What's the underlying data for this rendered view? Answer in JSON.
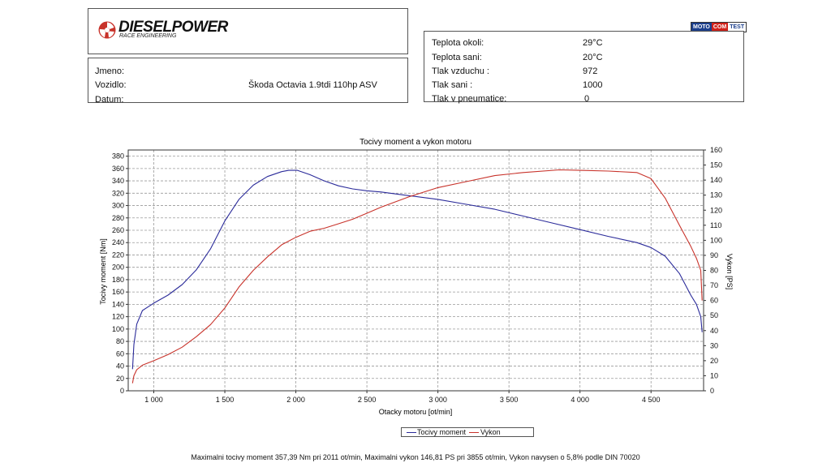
{
  "header": {
    "logo_text": "DIESELPOWER",
    "logo_sub": "RACE ENGINEERING",
    "badge": [
      "MOTO",
      "COM",
      "TEST"
    ]
  },
  "info": {
    "name_label": "Jmeno:",
    "vehicle_label": "Vozidlo:",
    "vehicle_value": "Škoda Octavia 1.9tdi 110hp ASV",
    "date_label": "Datum:"
  },
  "conditions": [
    {
      "label": "Teplota okoli:",
      "value": "29°C"
    },
    {
      "label": "Teplota sani:",
      "value": "20°C"
    },
    {
      "label": "Tlak vzduchu :",
      "value": "972"
    },
    {
      "label": "Tlak sani :",
      "value": "1000"
    },
    {
      "label": "Tlak v pneumatice:",
      "value": "0"
    }
  ],
  "colors": {
    "torque": "#2b2b9a",
    "power": "#c8322a",
    "grid": "#9a9a9a"
  },
  "chart_data": {
    "type": "line",
    "title": "Tocivy moment a vykon motoru",
    "xlabel": "Otacky motoru [ot/min]",
    "ylabel": "Tocivy moment [Nm]",
    "y2label": "Vykon [PS]",
    "xlim": [
      820,
      4870
    ],
    "ylim": [
      0,
      390
    ],
    "y2lim": [
      0,
      160
    ],
    "xticks": [
      1000,
      1500,
      2000,
      2500,
      3000,
      3500,
      4000,
      4500
    ],
    "xtick_labels": [
      "1 000",
      "1 500",
      "2 000",
      "2 500",
      "3 000",
      "3 500",
      "4 000",
      "4 500"
    ],
    "yticks": [
      0,
      20,
      40,
      60,
      80,
      100,
      120,
      140,
      160,
      180,
      200,
      220,
      240,
      260,
      280,
      300,
      320,
      340,
      360,
      380
    ],
    "y2ticks": [
      0,
      10,
      20,
      30,
      40,
      50,
      60,
      70,
      80,
      90,
      100,
      110,
      120,
      130,
      140,
      150,
      160
    ],
    "grid": true,
    "legend_position": "bottom",
    "series": [
      {
        "name": "Tocivy moment",
        "axis": "left",
        "x": [
          850,
          860,
          880,
          920,
          1000,
          1100,
          1200,
          1300,
          1400,
          1500,
          1600,
          1700,
          1800,
          1900,
          1950,
          2011,
          2100,
          2200,
          2300,
          2400,
          2500,
          2600,
          2800,
          3000,
          3200,
          3400,
          3600,
          3800,
          4000,
          4200,
          4400,
          4500,
          4600,
          4700,
          4780,
          4820,
          4850,
          4860
        ],
        "values": [
          35,
          75,
          108,
          130,
          142,
          155,
          172,
          196,
          230,
          275,
          310,
          333,
          347,
          355,
          357,
          357,
          350,
          340,
          332,
          327,
          324,
          322,
          316,
          310,
          302,
          294,
          283,
          272,
          261,
          250,
          240,
          232,
          218,
          190,
          155,
          140,
          120,
          95
        ]
      },
      {
        "name": "Vykon",
        "axis": "right",
        "x": [
          850,
          860,
          880,
          920,
          1000,
          1100,
          1200,
          1300,
          1400,
          1500,
          1600,
          1700,
          1800,
          1900,
          2000,
          2100,
          2200,
          2300,
          2400,
          2500,
          2600,
          2800,
          3000,
          3200,
          3400,
          3600,
          3855,
          4000,
          4200,
          4400,
          4500,
          4600,
          4700,
          4780,
          4820,
          4850,
          4860
        ],
        "values": [
          5,
          10,
          14,
          17,
          20,
          24,
          29,
          36,
          44,
          55,
          69,
          80,
          89,
          97,
          102,
          106,
          108,
          111,
          114,
          118,
          122,
          129,
          135,
          139,
          143,
          145,
          146.8,
          146.5,
          146,
          145,
          141,
          128,
          110,
          96,
          88,
          80,
          60
        ]
      }
    ],
    "footer": "Maximalni tocivy moment 357,39 Nm pri 2011 ot/min,  Maximalni vykon 146,81 PS pri 3855 ot/min,  Vykon navysen o 5,8% podle DIN 70020"
  }
}
